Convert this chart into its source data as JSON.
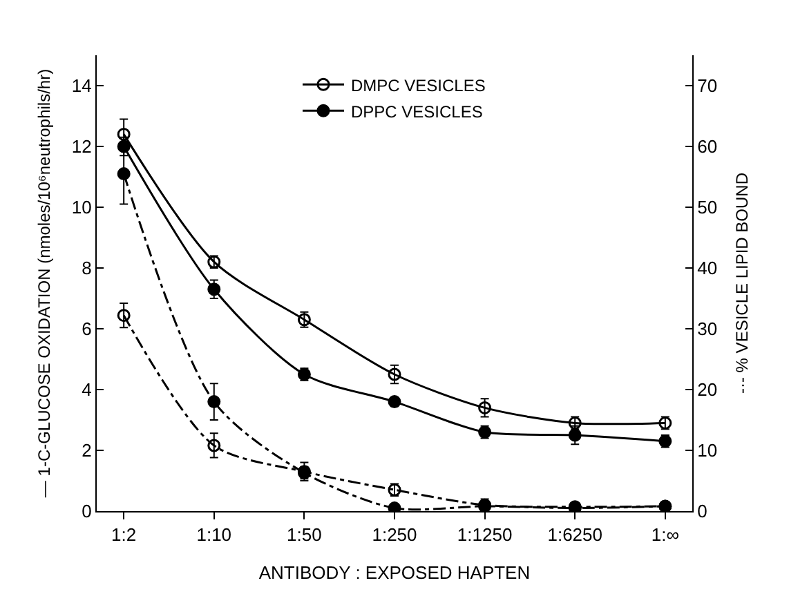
{
  "chart_data": {
    "type": "line",
    "xlabel": "ANTIBODY : EXPOSED HAPTEN",
    "ylabel": "— 1-C-GLUCOSE OXIDATION (nmoles/10⁶neutrophils/hr)",
    "y2label": "-·- % VESICLE LIPID BOUND",
    "categories": [
      "1:2",
      "1:10",
      "1:50",
      "1:250",
      "1:1250",
      "1:6250",
      "1:∞"
    ],
    "ylim": [
      0,
      15
    ],
    "yticks": [
      0,
      2,
      4,
      6,
      8,
      10,
      12,
      14
    ],
    "y2lim": [
      0,
      75
    ],
    "y2ticks": [
      0,
      10,
      20,
      30,
      40,
      50,
      60,
      70
    ],
    "grid": false,
    "legend": "top",
    "marker": "circle",
    "series": [
      {
        "name": "DMPC VESICLES",
        "color": "#000000",
        "line_style": "solid",
        "values": [
          12.4,
          8.2,
          6.3,
          4.5,
          3.4,
          2.9,
          2.9
        ],
        "errors": [
          0.5,
          0.2,
          0.25,
          0.3,
          0.3,
          0.2,
          0.2
        ]
      },
      {
        "name": "DPPC VESICLES",
        "color": "#000000",
        "line_style": "solid",
        "values": [
          12.0,
          7.3,
          4.5,
          3.6,
          2.6,
          2.5,
          2.3
        ],
        "errors": [
          0.3,
          0.3,
          0.2,
          0.15,
          0.2,
          0.3,
          0.2
        ]
      },
      {
        "color": "#000000",
        "line_style": "dashed",
        "axis": "y2",
        "values": [
          32.2,
          10.8,
          6.5,
          3.5,
          1.0,
          0.7,
          0.8
        ],
        "errors": [
          2,
          2,
          1.5,
          1,
          1,
          null,
          null
        ]
      },
      {
        "color": "#000000",
        "line_style": "dashed",
        "axis": "y2",
        "values": [
          55.5,
          18,
          6.3,
          0.5,
          0.8,
          0.5,
          0.8
        ],
        "errors": [
          5,
          3,
          1,
          null,
          null,
          null,
          null
        ]
      }
    ]
  }
}
